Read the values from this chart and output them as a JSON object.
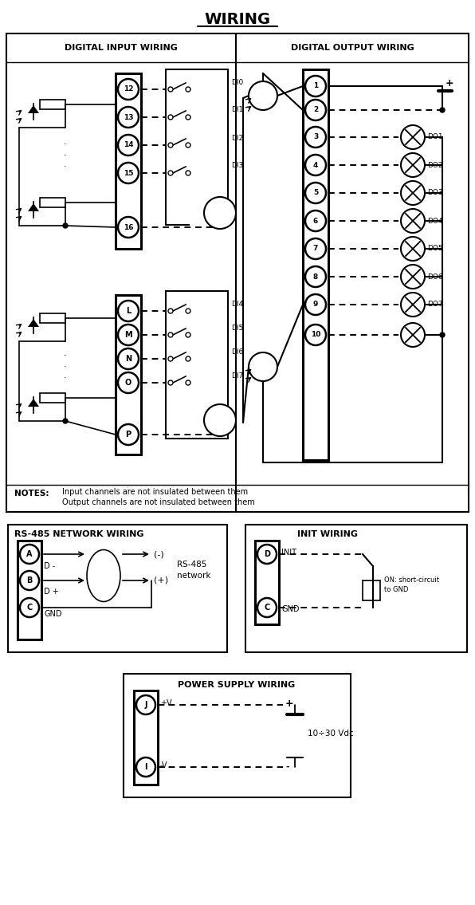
{
  "title": "WIRING",
  "di_label": "DIGITAL INPUT WIRING",
  "do_label": "DIGITAL OUTPUT WIRING",
  "rs485_label": "RS-485 NETWORK WIRING",
  "init_label": "INIT WIRING",
  "ps_label": "POWER SUPPLY WIRING",
  "notes_label": "NOTES:",
  "notes_line1": "Input channels are not insulated between them",
  "notes_line2": "Output channels are not insulated between them",
  "rs485_network_1": "RS-485",
  "rs485_network_2": "network",
  "on_short_1": "ON: short-circuit",
  "on_short_2": "to GND",
  "vdc_label": "10÷30 Vdc",
  "d_minus": "D -",
  "d_plus": "D +",
  "gnd": "GND",
  "init": "INIT",
  "plus_v": "+V",
  "minus_v": "-V",
  "bg": "#ffffff",
  "fg": "#000000"
}
